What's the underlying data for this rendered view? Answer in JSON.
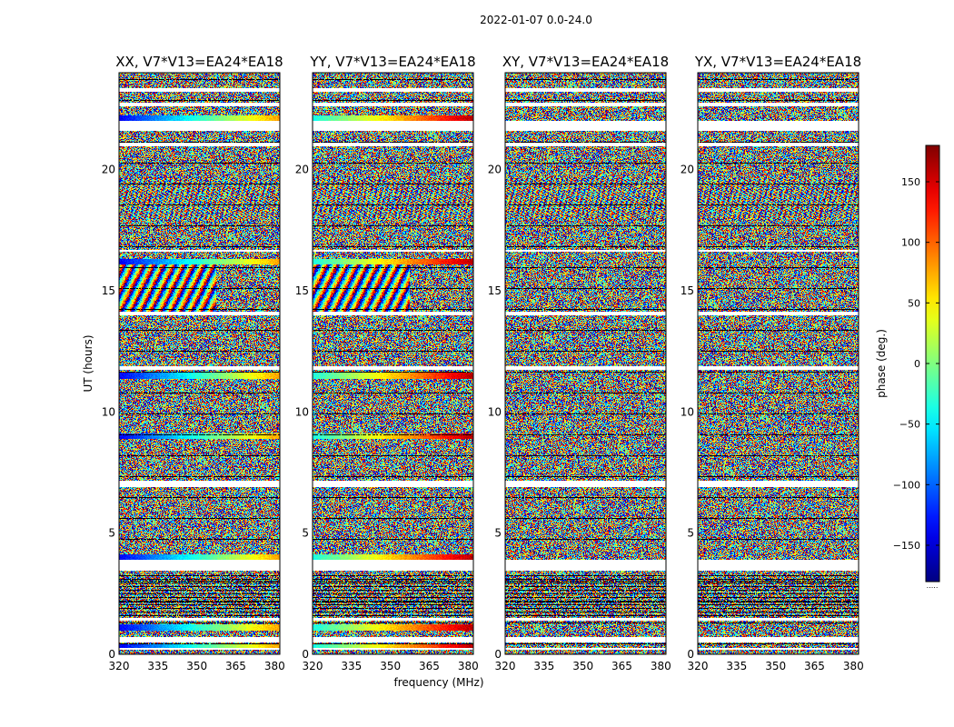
{
  "chart_data": {
    "type": "heatmap",
    "title": "2022-01-07 0.0-24.0",
    "xlabel": "frequency (MHz)",
    "ylabel": "UT (hours)",
    "xlim": [
      320,
      382
    ],
    "ylim": [
      0,
      24
    ],
    "xticks": [
      320,
      335,
      350,
      365,
      380
    ],
    "yticks": [
      0,
      5,
      10,
      15,
      20
    ],
    "panels": [
      {
        "title": "XX, V7*V13=EA24*EA18"
      },
      {
        "title": "YY, V7*V13=EA24*EA18"
      },
      {
        "title": "XY, V7*V13=EA24*EA18"
      },
      {
        "title": "YX, V7*V13=EA24*EA18"
      }
    ],
    "colorbar": {
      "label": "phase (deg.)",
      "range": [
        -180,
        180
      ],
      "ticks": [
        150,
        100,
        50,
        0,
        -50,
        -100,
        -150
      ],
      "colormap": "jet",
      "minor_label": "....."
    },
    "data_gaps_ut_hours": [
      [
        0.18,
        0.25
      ],
      [
        0.5,
        0.7
      ],
      [
        1.4,
        1.5
      ],
      [
        3.45,
        3.6
      ],
      [
        3.6,
        3.9
      ],
      [
        6.9,
        7.15
      ],
      [
        11.75,
        11.9
      ],
      [
        14.0,
        14.15
      ],
      [
        16.6,
        16.7
      ],
      [
        20.95,
        21.1
      ],
      [
        21.6,
        22.0
      ],
      [
        22.6,
        22.75
      ],
      [
        23.2,
        23.35
      ]
    ],
    "coherent_phase_bands_ut_hours": [
      0.3,
      1.1,
      4.0,
      9.0,
      11.5,
      16.2,
      22.1
    ]
  }
}
